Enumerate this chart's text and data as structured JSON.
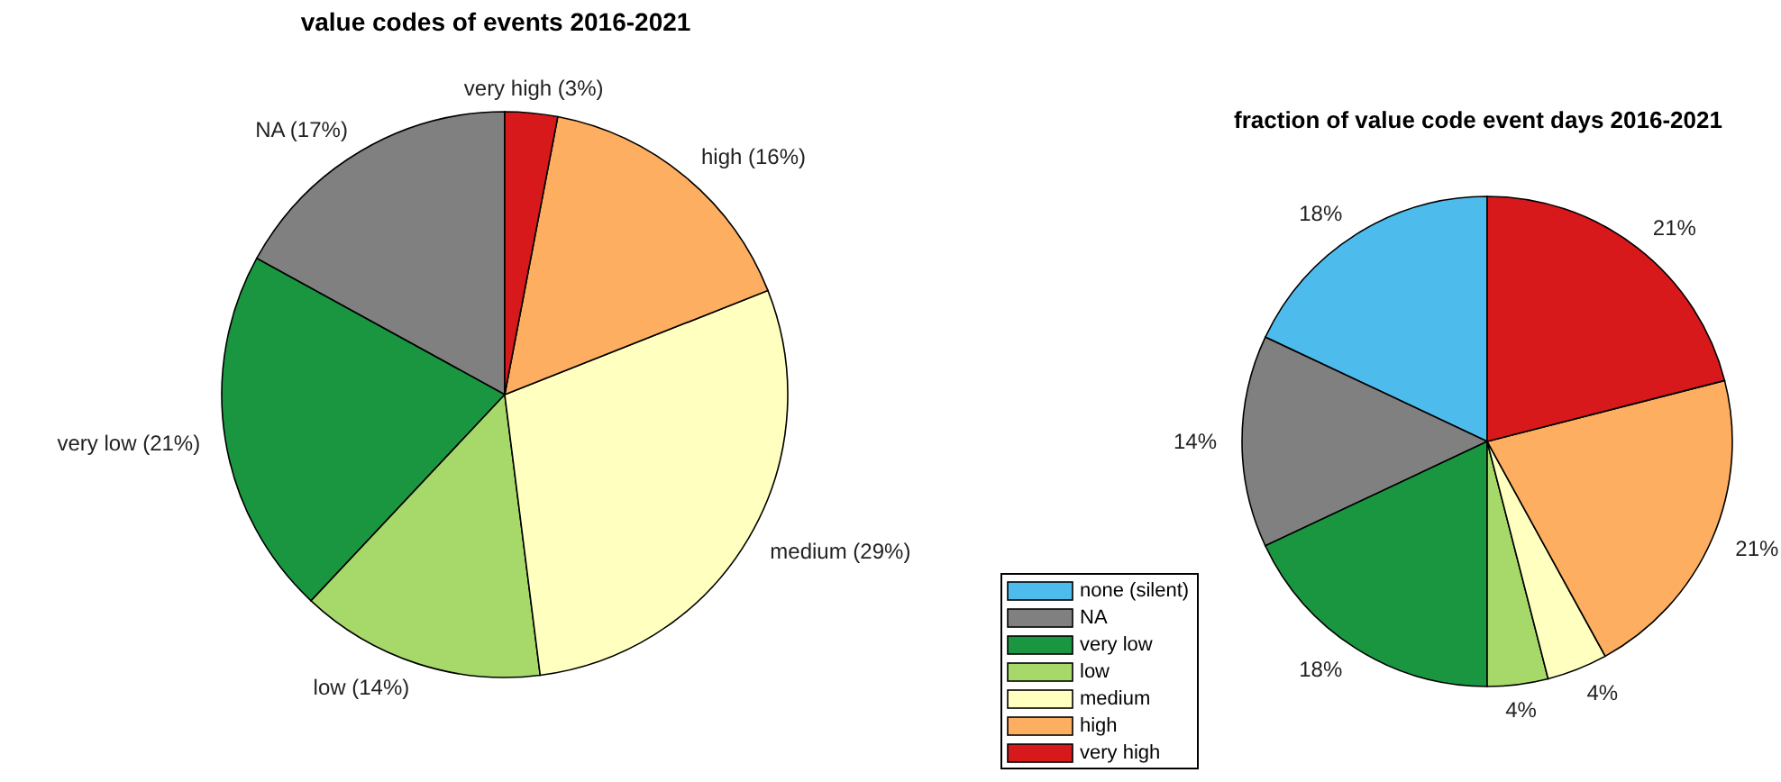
{
  "chart_data": [
    {
      "type": "pie",
      "title": "value codes of events 2016-2021",
      "categories": [
        "NA (17%)",
        "very low (21%)",
        "low (14%)",
        "medium (29%)",
        "high (16%)",
        "very high (3%)"
      ],
      "values": [
        17,
        21,
        14,
        29,
        16,
        3
      ],
      "colors": [
        "#808080",
        "#1a9641",
        "#a6d96a",
        "#ffffc0",
        "#fdae61",
        "#d7191c"
      ],
      "legend": false
    },
    {
      "type": "pie",
      "title": "fraction of value code event days 2016-2021",
      "categories": [
        "none (silent)",
        "NA",
        "very low",
        "low",
        "medium",
        "high",
        "very high"
      ],
      "values": [
        18,
        14,
        18,
        4,
        4,
        21,
        21
      ],
      "colors": [
        "#4dbbeb",
        "#808080",
        "#1a9641",
        "#a6d96a",
        "#ffffc0",
        "#fdae61",
        "#d7191c"
      ],
      "value_labels": [
        "18%",
        "14%",
        "18%",
        "4%",
        "4%",
        "21%",
        "21%"
      ],
      "legend": "bottom left"
    }
  ]
}
